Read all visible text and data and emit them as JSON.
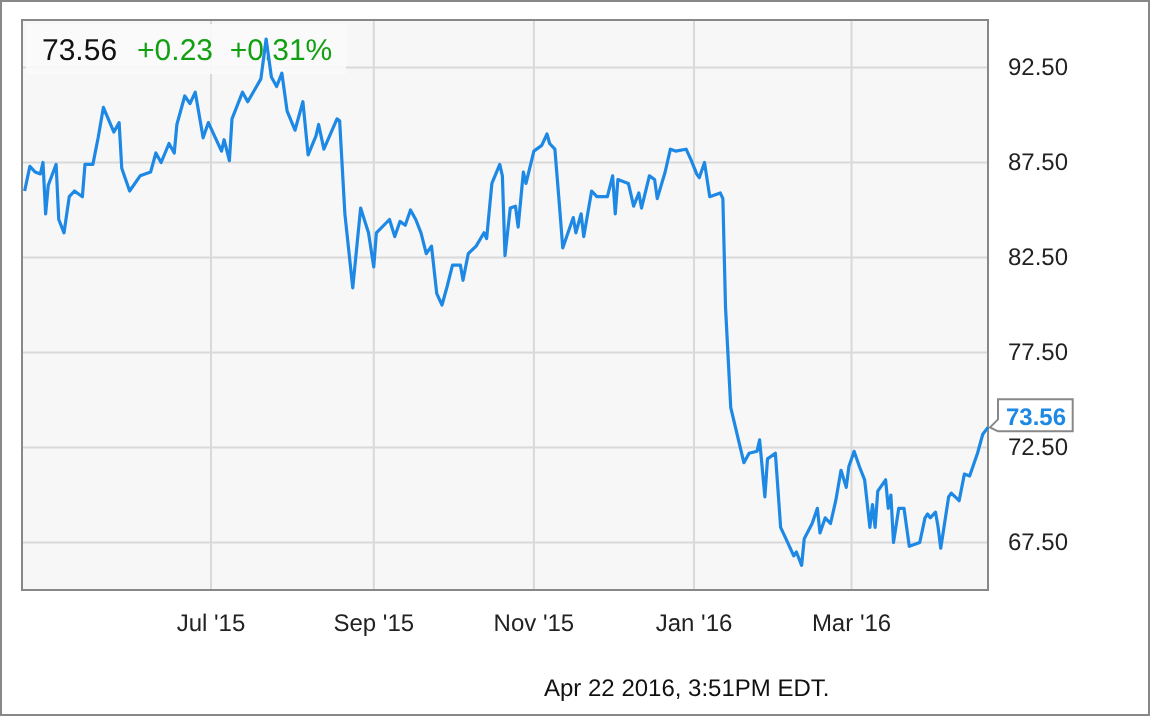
{
  "chart_data": {
    "type": "line",
    "title": "73.56",
    "subtitle": "+0.23  +0.31%",
    "x": [
      "2015-04-21",
      "2015-04-23",
      "2015-04-25",
      "2015-04-27",
      "2015-04-28",
      "2015-04-29",
      "2015-04-30",
      "2015-05-03",
      "2015-05-04",
      "2015-05-06",
      "2015-05-08",
      "2015-05-10",
      "2015-05-13",
      "2015-05-14",
      "2015-05-17",
      "2015-05-19",
      "2015-05-21",
      "2015-05-25",
      "2015-05-27",
      "2015-05-28",
      "2015-05-31",
      "2015-06-04",
      "2015-06-08",
      "2015-06-10",
      "2015-06-12",
      "2015-06-15",
      "2015-06-17",
      "2015-06-18",
      "2015-06-21",
      "2015-06-23",
      "2015-06-25",
      "2015-06-28",
      "2015-06-30",
      "2015-07-05",
      "2015-07-06",
      "2015-07-08",
      "2015-07-09",
      "2015-07-13",
      "2015-07-15",
      "2015-07-20",
      "2015-07-22",
      "2015-07-24",
      "2015-07-26",
      "2015-07-28",
      "2015-07-30",
      "2015-08-02",
      "2015-08-05",
      "2015-08-07",
      "2015-08-10",
      "2015-08-11",
      "2015-08-13",
      "2015-08-18",
      "2015-08-19",
      "2015-08-21",
      "2015-08-24",
      "2015-08-27",
      "2015-08-30",
      "2015-09-01",
      "2015-09-02",
      "2015-09-07",
      "2015-09-09",
      "2015-09-11",
      "2015-09-13",
      "2015-09-15",
      "2015-09-17",
      "2015-09-19",
      "2015-09-21",
      "2015-09-23",
      "2015-09-25",
      "2015-09-27",
      "2015-09-29",
      "2015-10-01",
      "2015-10-04",
      "2015-10-05",
      "2015-10-07",
      "2015-10-10",
      "2015-10-13",
      "2015-10-14",
      "2015-10-16",
      "2015-10-19",
      "2015-10-20",
      "2015-10-21",
      "2015-10-23",
      "2015-10-25",
      "2015-10-26",
      "2015-10-28",
      "2015-10-29",
      "2015-11-01",
      "2015-11-04",
      "2015-11-06",
      "2015-11-07",
      "2015-11-09",
      "2015-11-11",
      "2015-11-12",
      "2015-11-16",
      "2015-11-17",
      "2015-11-19",
      "2015-11-20",
      "2015-11-23",
      "2015-11-25",
      "2015-11-29",
      "2015-12-01",
      "2015-12-02",
      "2015-12-03",
      "2015-12-07",
      "2015-12-09",
      "2015-12-11",
      "2015-12-12",
      "2015-12-15",
      "2015-12-17",
      "2015-12-18",
      "2015-12-21",
      "2015-12-23",
      "2015-12-25",
      "2015-12-29",
      "2015-12-31",
      "2016-01-02",
      "2016-01-03",
      "2016-01-05",
      "2016-01-07",
      "2016-01-11",
      "2016-01-12",
      "2016-01-13",
      "2016-01-15",
      "2016-01-20",
      "2016-01-22",
      "2016-01-25",
      "2016-01-26",
      "2016-01-28",
      "2016-01-29",
      "2016-02-01",
      "2016-02-03",
      "2016-02-05",
      "2016-02-08",
      "2016-02-09",
      "2016-02-11",
      "2016-02-12",
      "2016-02-15",
      "2016-02-17",
      "2016-02-18",
      "2016-02-20",
      "2016-02-22",
      "2016-02-24",
      "2016-02-26",
      "2016-02-28",
      "2016-02-29",
      "2016-03-02",
      "2016-03-04",
      "2016-03-06",
      "2016-03-08",
      "2016-03-09",
      "2016-03-10",
      "2016-03-11",
      "2016-03-14",
      "2016-03-15",
      "2016-03-16",
      "2016-03-17",
      "2016-03-19",
      "2016-03-21",
      "2016-03-23",
      "2016-03-27",
      "2016-03-29",
      "2016-03-30",
      "2016-03-31",
      "2016-04-02",
      "2016-04-03",
      "2016-04-04",
      "2016-04-07",
      "2016-04-08",
      "2016-04-11",
      "2016-04-13",
      "2016-04-15",
      "2016-04-18",
      "2016-04-20",
      "2016-04-22"
    ],
    "series": [
      {
        "color": "#1e88e5",
        "values": [
          86.0,
          87.3,
          87.0,
          86.9,
          87.5,
          84.8,
          86.3,
          87.4,
          84.5,
          83.8,
          85.7,
          86.0,
          85.7,
          87.4,
          87.4,
          88.8,
          90.4,
          89.1,
          89.6,
          87.2,
          86.0,
          86.8,
          87.0,
          88.0,
          87.5,
          88.5,
          88.0,
          89.5,
          91.0,
          90.6,
          91.2,
          88.8,
          89.6,
          88.1,
          88.7,
          87.6,
          89.8,
          91.2,
          90.7,
          91.9,
          94.0,
          92.0,
          91.5,
          92.2,
          90.2,
          89.2,
          90.7,
          87.9,
          88.9,
          89.5,
          88.2,
          89.8,
          89.7,
          84.8,
          80.9,
          85.1,
          83.8,
          82.0,
          83.8,
          84.5,
          83.6,
          84.4,
          84.2,
          85.0,
          84.5,
          83.8,
          82.7,
          83.1,
          80.6,
          80.0,
          81.0,
          82.1,
          82.1,
          81.3,
          82.7,
          83.1,
          83.8,
          83.5,
          86.4,
          87.4,
          86.8,
          82.6,
          85.1,
          85.2,
          84.1,
          87.0,
          86.4,
          88.1,
          88.4,
          89.0,
          88.5,
          88.2,
          84.8,
          83.0,
          84.6,
          83.8,
          84.8,
          83.6,
          86.0,
          85.7,
          85.7,
          86.8,
          84.8,
          86.6,
          86.4,
          85.2,
          85.9,
          85.1,
          86.8,
          86.6,
          85.6,
          87.0,
          88.2,
          88.1,
          88.2,
          87.6,
          86.9,
          86.7,
          87.5,
          85.7,
          85.9,
          85.6,
          79.9,
          74.6,
          71.7,
          72.2,
          72.3,
          72.9,
          69.9,
          71.9,
          72.2,
          68.3,
          67.7,
          66.8,
          67.0,
          66.3,
          67.7,
          68.5,
          69.3,
          68.0,
          68.8,
          68.5,
          69.7,
          71.3,
          70.4,
          71.5,
          72.3,
          71.5,
          70.8,
          68.3,
          69.5,
          68.3,
          70.2,
          70.8,
          69.3,
          70.0,
          67.5,
          69.3,
          69.3,
          67.3,
          67.5,
          68.8,
          69.0,
          68.8,
          69.1,
          68.3,
          67.2,
          69.9,
          70.1,
          69.7,
          71.1,
          71.0,
          72.2,
          73.2,
          73.56
        ]
      }
    ],
    "xlim": [
      "2015-04-20",
      "2016-04-22"
    ],
    "xticks": [
      {
        "value": "2015-07-01",
        "label": "Jul '15"
      },
      {
        "value": "2015-09-01",
        "label": "Sep '15"
      },
      {
        "value": "2015-11-01",
        "label": "Nov '15"
      },
      {
        "value": "2016-01-01",
        "label": "Jan '16"
      },
      {
        "value": "2016-03-01",
        "label": "Mar '16"
      }
    ],
    "ylim": [
      65,
      95
    ],
    "yticks": [
      {
        "value": 67.5,
        "label": "67.50"
      },
      {
        "value": 72.5,
        "label": "72.50"
      },
      {
        "value": 77.5,
        "label": "77.50"
      },
      {
        "value": 82.5,
        "label": "82.50"
      },
      {
        "value": 87.5,
        "label": "87.50"
      },
      {
        "value": 92.5,
        "label": "92.50"
      }
    ],
    "grid": true,
    "marker": "none",
    "line_style": "solid",
    "annotations": [
      {
        "text": "73.56",
        "x": "2016-04-22",
        "y": 73.56
      },
      "Apr 22 2016, 3:51PM EDT."
    ]
  }
}
